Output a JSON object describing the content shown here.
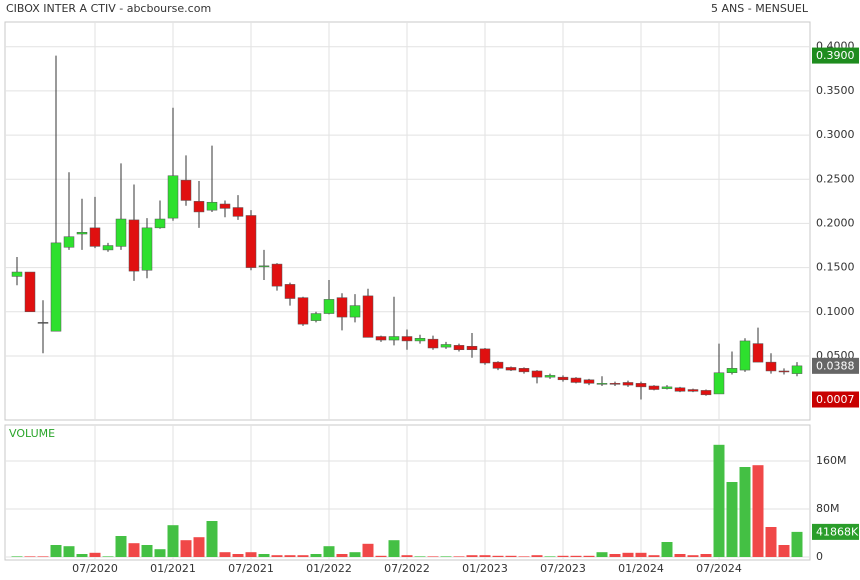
{
  "chart_data": [
    {
      "type": "candlestick",
      "title": "CIBOX INTER A CTIV - abcbourse.com",
      "subtitle": "5 ANS - MENSUEL",
      "categories": [
        null,
        null,
        null,
        null,
        null,
        null,
        "07/2020",
        null,
        null,
        null,
        null,
        null,
        "01/2021",
        null,
        null,
        null,
        null,
        null,
        "07/2021",
        null,
        null,
        null,
        null,
        null,
        "01/2022",
        null,
        null,
        null,
        null,
        null,
        "07/2022",
        null,
        null,
        null,
        null,
        null,
        "01/2023",
        null,
        null,
        null,
        null,
        null,
        "07/2023",
        null,
        null,
        null,
        null,
        null,
        "01/2024",
        null,
        null,
        null,
        null,
        null,
        "07/2024",
        null,
        null,
        null,
        null,
        null,
        null
      ],
      "open": [
        0.14,
        0.145,
        0.088,
        0.078,
        0.173,
        0.188,
        0.195,
        0.17,
        0.174,
        0.204,
        0.147,
        0.195,
        0.206,
        0.249,
        0.225,
        0.215,
        0.222,
        0.218,
        0.209,
        0.151,
        0.154,
        0.131,
        0.116,
        0.09,
        0.098,
        0.116,
        0.094,
        0.118,
        0.072,
        0.068,
        0.072,
        0.067,
        0.069,
        0.06,
        0.062,
        0.061,
        0.058,
        0.043,
        0.037,
        0.036,
        0.033,
        0.026,
        0.026,
        0.025,
        0.023,
        0.018,
        0.019,
        0.02,
        0.019,
        0.016,
        0.013,
        0.014,
        0.012,
        0.011,
        0.007,
        0.031,
        0.034,
        0.064,
        0.043,
        0.033,
        0.03
      ],
      "high": [
        0.162,
        0.145,
        0.113,
        0.39,
        0.258,
        0.228,
        0.23,
        0.178,
        0.268,
        0.244,
        0.206,
        0.226,
        0.331,
        0.277,
        0.248,
        0.288,
        0.226,
        0.232,
        0.215,
        0.17,
        0.155,
        0.133,
        0.117,
        0.1,
        0.136,
        0.121,
        0.12,
        0.126,
        0.073,
        0.117,
        0.08,
        0.074,
        0.073,
        0.066,
        0.064,
        0.076,
        0.059,
        0.044,
        0.038,
        0.037,
        0.034,
        0.03,
        0.028,
        0.026,
        0.024,
        0.027,
        0.021,
        0.022,
        0.021,
        0.017,
        0.017,
        0.015,
        0.013,
        0.012,
        0.064,
        0.055,
        0.07,
        0.082,
        0.053,
        0.036,
        0.043
      ],
      "low": [
        0.13,
        0.1,
        0.053,
        0.078,
        0.17,
        0.17,
        0.172,
        0.168,
        0.17,
        0.135,
        0.138,
        0.194,
        0.203,
        0.22,
        0.195,
        0.213,
        0.207,
        0.204,
        0.147,
        0.136,
        0.124,
        0.107,
        0.084,
        0.088,
        0.097,
        0.079,
        0.088,
        0.071,
        0.066,
        0.062,
        0.057,
        0.064,
        0.057,
        0.058,
        0.055,
        0.048,
        0.04,
        0.034,
        0.033,
        0.03,
        0.019,
        0.024,
        0.021,
        0.019,
        0.017,
        0.016,
        0.016,
        0.015,
        0.0007,
        0.011,
        0.012,
        0.009,
        0.009,
        0.005,
        0.007,
        0.029,
        0.032,
        0.043,
        0.03,
        0.029,
        0.027
      ],
      "close": [
        0.145,
        0.1,
        0.088,
        0.178,
        0.185,
        0.19,
        0.174,
        0.175,
        0.205,
        0.146,
        0.195,
        0.205,
        0.254,
        0.226,
        0.213,
        0.224,
        0.217,
        0.208,
        0.15,
        0.152,
        0.129,
        0.115,
        0.086,
        0.098,
        0.114,
        0.094,
        0.107,
        0.071,
        0.068,
        0.072,
        0.067,
        0.07,
        0.059,
        0.063,
        0.057,
        0.057,
        0.042,
        0.036,
        0.034,
        0.032,
        0.026,
        0.028,
        0.023,
        0.02,
        0.019,
        0.019,
        0.018,
        0.017,
        0.015,
        0.012,
        0.015,
        0.01,
        0.01,
        0.006,
        0.031,
        0.036,
        0.067,
        0.043,
        0.033,
        0.032,
        0.0388
      ],
      "up_color": "#2ee02e",
      "down_color": "#e01010",
      "flat_color": "#555555",
      "ylim": [
        -0.0225,
        0.428
      ],
      "yticks": [
        {
          "value": 0.4,
          "label": "0.4000"
        },
        {
          "value": 0.35,
          "label": "0.3500"
        },
        {
          "value": 0.3,
          "label": "0.3000"
        },
        {
          "value": 0.25,
          "label": "0.2500"
        },
        {
          "value": 0.2,
          "label": "0.2000"
        },
        {
          "value": 0.15,
          "label": "0.1500"
        },
        {
          "value": 0.1,
          "label": "0.1000"
        },
        {
          "value": 0.05,
          "label": "0.0500"
        }
      ],
      "grid": true,
      "badges": [
        {
          "value": 0.39,
          "label": "0.3900",
          "color": "#1e8c1e"
        },
        {
          "value": 0.0388,
          "label": "0.0388",
          "color": "#666666"
        },
        {
          "value": 0.0007,
          "label": "0.0007",
          "color": "#c80000"
        }
      ]
    },
    {
      "type": "bar",
      "title": "VOLUME",
      "values": [
        1,
        1,
        1,
        20,
        18,
        5,
        7,
        1,
        35,
        23,
        20,
        13,
        53,
        28,
        33,
        60,
        8,
        5,
        8,
        5,
        3,
        3,
        3,
        5,
        18,
        5,
        8,
        22,
        2,
        28,
        3,
        1,
        1,
        1,
        1,
        3,
        3,
        2,
        2,
        1,
        3,
        1,
        2,
        2,
        2,
        8,
        5,
        7,
        7,
        3,
        25,
        5,
        3,
        5,
        187,
        125,
        150,
        153,
        50,
        20,
        41.868
      ],
      "up_color": "#44c044",
      "down_color": "#f04848",
      "ylim": [
        -5,
        220
      ],
      "yticks": [
        {
          "value": 160,
          "label": "160M"
        },
        {
          "value": 80,
          "label": "80M"
        },
        0
      ],
      "grid": true,
      "badges": [
        {
          "value": 41.868,
          "label": "41868K",
          "color": "#2a9d2a"
        }
      ]
    }
  ]
}
